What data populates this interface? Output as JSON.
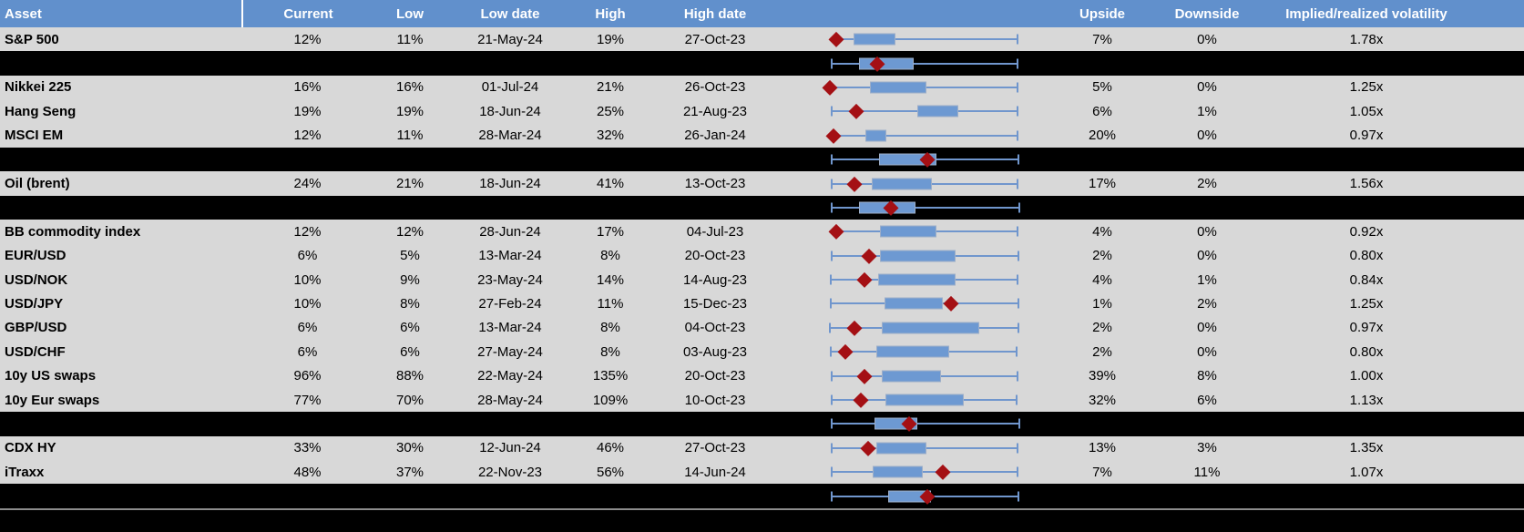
{
  "colors": {
    "header_bg": "#6190CC",
    "header_text": "#FFFFFF",
    "row_bg": "#D8D8D8",
    "summary_row_bg": "#000000",
    "whisker_blue": "#7096CD",
    "box_blue": "#6D99D2",
    "marker_dark_red": "#A41014",
    "separator_gray": "#8C8C8C"
  },
  "chart_data": {
    "type": "table",
    "embedded_plot": "boxplot",
    "plot_note": "Each row shows a horizontal box-and-whisker of the volatility range with a dark-red diamond marking current level; no axis labels are shown, so box geometry is stored as percent of the plot column width.",
    "columns": [
      "Asset",
      "Current",
      "Low",
      "Low date",
      "High",
      "High date",
      "Upside",
      "Downside",
      "Implied/realized volatility"
    ],
    "rows": [
      {
        "type": "asset",
        "asset": "S&P 500",
        "current": "12%",
        "low": "11%",
        "low_date": "21-May-24",
        "high": "19%",
        "high_date": "27-Oct-23",
        "upside": "7%",
        "downside": "0%",
        "implied_realized": "1.78x",
        "box": {
          "min": 20.7,
          "q1": 27.5,
          "q3": 43.9,
          "max": 91.8,
          "marker": 20.7
        }
      },
      {
        "type": "summary",
        "box": {
          "min": 18.9,
          "q1": 29.6,
          "q3": 51.1,
          "max": 91.8,
          "marker": 36.8
        }
      },
      {
        "type": "asset",
        "asset": "Nikkei 225",
        "current": "16%",
        "low": "16%",
        "low_date": "01-Jul-24",
        "high": "21%",
        "high_date": "26-Oct-23",
        "upside": "5%",
        "downside": "0%",
        "implied_realized": "1.25x",
        "box": {
          "min": 18.2,
          "q1": 33.9,
          "q3": 56.1,
          "max": 91.8,
          "marker": 18.2
        }
      },
      {
        "type": "asset",
        "asset": "Hang Seng",
        "current": "19%",
        "low": "19%",
        "low_date": "18-Jun-24",
        "high": "25%",
        "high_date": "21-Aug-23",
        "upside": "6%",
        "downside": "1%",
        "implied_realized": "1.05x",
        "box": {
          "min": 18.9,
          "q1": 52.5,
          "q3": 68.6,
          "max": 91.8,
          "marker": 28.6
        }
      },
      {
        "type": "asset",
        "asset": "MSCI EM",
        "current": "12%",
        "low": "11%",
        "low_date": "28-Mar-24",
        "high": "32%",
        "high_date": "26-Jan-24",
        "upside": "20%",
        "downside": "0%",
        "implied_realized": "0.97x",
        "box": {
          "min": 19.6,
          "q1": 32.1,
          "q3": 40.4,
          "max": 91.8,
          "marker": 19.6
        }
      },
      {
        "type": "summary",
        "box": {
          "min": 18.9,
          "q1": 37.5,
          "q3": 60.0,
          "max": 92.1,
          "marker": 56.4
        }
      },
      {
        "type": "asset",
        "asset": "Oil (brent)",
        "current": "24%",
        "low": "21%",
        "low_date": "18-Jun-24",
        "high": "41%",
        "high_date": "13-Oct-23",
        "upside": "17%",
        "downside": "2%",
        "implied_realized": "1.56x",
        "box": {
          "min": 18.9,
          "q1": 34.6,
          "q3": 58.2,
          "max": 91.8,
          "marker": 27.9
        }
      },
      {
        "type": "summary",
        "box": {
          "min": 18.9,
          "q1": 29.6,
          "q3": 51.8,
          "max": 92.5,
          "marker": 42.1
        }
      },
      {
        "type": "asset",
        "asset": "BB commodity index",
        "current": "12%",
        "low": "12%",
        "low_date": "28-Jun-24",
        "high": "17%",
        "high_date": "04-Jul-23",
        "upside": "4%",
        "downside": "0%",
        "implied_realized": "0.92x",
        "box": {
          "min": 20.7,
          "q1": 37.9,
          "q3": 60.0,
          "max": 91.8,
          "marker": 20.7
        }
      },
      {
        "type": "asset",
        "asset": "EUR/USD",
        "current": "6%",
        "low": "5%",
        "low_date": "13-Mar-24",
        "high": "8%",
        "high_date": "20-Oct-23",
        "upside": "2%",
        "downside": "0%",
        "implied_realized": "0.80x",
        "box": {
          "min": 18.9,
          "q1": 37.9,
          "q3": 67.5,
          "max": 92.1,
          "marker": 33.6
        }
      },
      {
        "type": "asset",
        "asset": "USD/NOK",
        "current": "10%",
        "low": "9%",
        "low_date": "23-May-24",
        "high": "14%",
        "high_date": "14-Aug-23",
        "upside": "4%",
        "downside": "1%",
        "implied_realized": "0.84x",
        "box": {
          "min": 18.6,
          "q1": 37.1,
          "q3": 67.5,
          "max": 91.8,
          "marker": 31.8
        }
      },
      {
        "type": "asset",
        "asset": "USD/JPY",
        "current": "10%",
        "low": "8%",
        "low_date": "27-Feb-24",
        "high": "11%",
        "high_date": "15-Dec-23",
        "upside": "1%",
        "downside": "2%",
        "implied_realized": "1.25x",
        "box": {
          "min": 18.6,
          "q1": 39.6,
          "q3": 62.5,
          "max": 92.1,
          "marker": 65.7
        }
      },
      {
        "type": "asset",
        "asset": "GBP/USD",
        "current": "6%",
        "low": "6%",
        "low_date": "13-Mar-24",
        "high": "8%",
        "high_date": "04-Oct-23",
        "upside": "2%",
        "downside": "0%",
        "implied_realized": "0.97x",
        "box": {
          "min": 18.2,
          "q1": 38.6,
          "q3": 76.8,
          "max": 92.1,
          "marker": 27.9
        }
      },
      {
        "type": "asset",
        "asset": "USD/CHF",
        "current": "6%",
        "low": "6%",
        "low_date": "27-May-24",
        "high": "8%",
        "high_date": "03-Aug-23",
        "upside": "2%",
        "downside": "0%",
        "implied_realized": "0.80x",
        "box": {
          "min": 18.6,
          "q1": 36.4,
          "q3": 65.0,
          "max": 91.4,
          "marker": 24.3
        }
      },
      {
        "type": "asset",
        "asset": "10y US swaps",
        "current": "96%",
        "low": "88%",
        "low_date": "22-May-24",
        "high": "135%",
        "high_date": "20-Oct-23",
        "upside": "39%",
        "downside": "8%",
        "implied_realized": "1.00x",
        "box": {
          "min": 18.9,
          "q1": 38.6,
          "q3": 61.8,
          "max": 91.8,
          "marker": 31.8
        }
      },
      {
        "type": "asset",
        "asset": "10y Eur swaps",
        "current": "77%",
        "low": "70%",
        "low_date": "28-May-24",
        "high": "109%",
        "high_date": "10-Oct-23",
        "upside": "32%",
        "downside": "6%",
        "implied_realized": "1.13x",
        "box": {
          "min": 18.9,
          "q1": 40.0,
          "q3": 70.7,
          "max": 91.4,
          "marker": 30.4
        }
      },
      {
        "type": "summary",
        "box": {
          "min": 18.9,
          "q1": 35.7,
          "q3": 52.5,
          "max": 92.5,
          "marker": 49.3
        }
      },
      {
        "type": "asset",
        "asset": "CDX HY",
        "current": "33%",
        "low": "30%",
        "low_date": "12-Jun-24",
        "high": "46%",
        "high_date": "27-Oct-23",
        "upside": "13%",
        "downside": "3%",
        "implied_realized": "1.35x",
        "box": {
          "min": 18.9,
          "q1": 36.4,
          "q3": 56.1,
          "max": 91.8,
          "marker": 33.2
        }
      },
      {
        "type": "asset",
        "asset": "iTraxx",
        "current": "48%",
        "low": "37%",
        "low_date": "22-Nov-23",
        "high": "56%",
        "high_date": "14-Jun-24",
        "upside": "7%",
        "downside": "11%",
        "implied_realized": "1.07x",
        "box": {
          "min": 18.9,
          "q1": 35.0,
          "q3": 54.6,
          "max": 91.8,
          "marker": 62.5
        }
      },
      {
        "type": "summary",
        "box": {
          "min": 18.9,
          "q1": 41.1,
          "q3": 57.9,
          "max": 92.1,
          "marker": 56.4
        }
      }
    ]
  }
}
